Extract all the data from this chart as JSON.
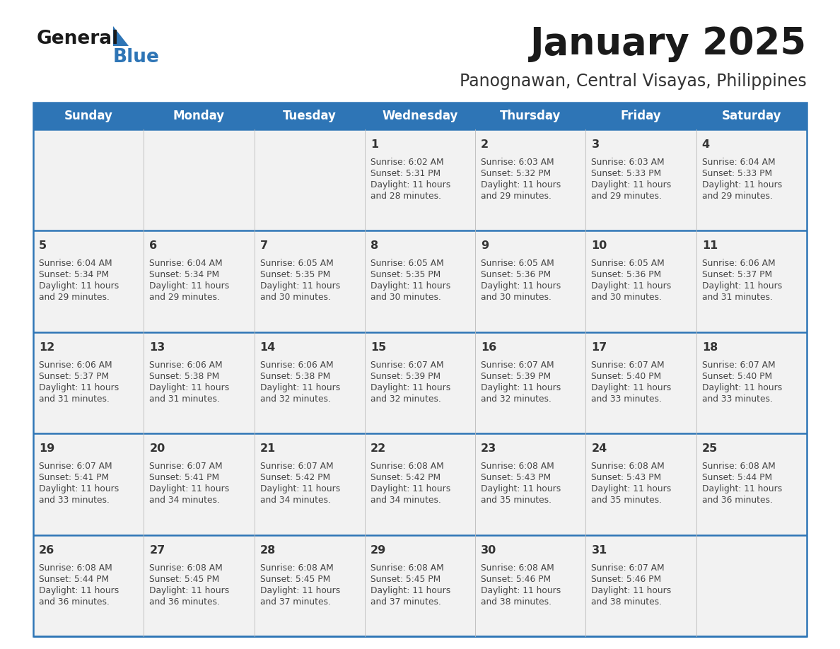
{
  "title": "January 2025",
  "subtitle": "Panognawan, Central Visayas, Philippines",
  "days_of_week": [
    "Sunday",
    "Monday",
    "Tuesday",
    "Wednesday",
    "Thursday",
    "Friday",
    "Saturday"
  ],
  "header_bg": "#2E75B6",
  "header_text": "#FFFFFF",
  "cell_bg": "#F2F2F2",
  "cell_border_color": "#2E75B6",
  "day_num_color": "#333333",
  "text_color": "#444444",
  "calendar_data": [
    [
      null,
      null,
      null,
      {
        "day": 1,
        "sunrise": "6:02 AM",
        "sunset": "5:31 PM",
        "daylight_min": "28"
      },
      {
        "day": 2,
        "sunrise": "6:03 AM",
        "sunset": "5:32 PM",
        "daylight_min": "29"
      },
      {
        "day": 3,
        "sunrise": "6:03 AM",
        "sunset": "5:33 PM",
        "daylight_min": "29"
      },
      {
        "day": 4,
        "sunrise": "6:04 AM",
        "sunset": "5:33 PM",
        "daylight_min": "29"
      }
    ],
    [
      {
        "day": 5,
        "sunrise": "6:04 AM",
        "sunset": "5:34 PM",
        "daylight_min": "29"
      },
      {
        "day": 6,
        "sunrise": "6:04 AM",
        "sunset": "5:34 PM",
        "daylight_min": "29"
      },
      {
        "day": 7,
        "sunrise": "6:05 AM",
        "sunset": "5:35 PM",
        "daylight_min": "30"
      },
      {
        "day": 8,
        "sunrise": "6:05 AM",
        "sunset": "5:35 PM",
        "daylight_min": "30"
      },
      {
        "day": 9,
        "sunrise": "6:05 AM",
        "sunset": "5:36 PM",
        "daylight_min": "30"
      },
      {
        "day": 10,
        "sunrise": "6:05 AM",
        "sunset": "5:36 PM",
        "daylight_min": "30"
      },
      {
        "day": 11,
        "sunrise": "6:06 AM",
        "sunset": "5:37 PM",
        "daylight_min": "31"
      }
    ],
    [
      {
        "day": 12,
        "sunrise": "6:06 AM",
        "sunset": "5:37 PM",
        "daylight_min": "31"
      },
      {
        "day": 13,
        "sunrise": "6:06 AM",
        "sunset": "5:38 PM",
        "daylight_min": "31"
      },
      {
        "day": 14,
        "sunrise": "6:06 AM",
        "sunset": "5:38 PM",
        "daylight_min": "32"
      },
      {
        "day": 15,
        "sunrise": "6:07 AM",
        "sunset": "5:39 PM",
        "daylight_min": "32"
      },
      {
        "day": 16,
        "sunrise": "6:07 AM",
        "sunset": "5:39 PM",
        "daylight_min": "32"
      },
      {
        "day": 17,
        "sunrise": "6:07 AM",
        "sunset": "5:40 PM",
        "daylight_min": "33"
      },
      {
        "day": 18,
        "sunrise": "6:07 AM",
        "sunset": "5:40 PM",
        "daylight_min": "33"
      }
    ],
    [
      {
        "day": 19,
        "sunrise": "6:07 AM",
        "sunset": "5:41 PM",
        "daylight_min": "33"
      },
      {
        "day": 20,
        "sunrise": "6:07 AM",
        "sunset": "5:41 PM",
        "daylight_min": "34"
      },
      {
        "day": 21,
        "sunrise": "6:07 AM",
        "sunset": "5:42 PM",
        "daylight_min": "34"
      },
      {
        "day": 22,
        "sunrise": "6:08 AM",
        "sunset": "5:42 PM",
        "daylight_min": "34"
      },
      {
        "day": 23,
        "sunrise": "6:08 AM",
        "sunset": "5:43 PM",
        "daylight_min": "35"
      },
      {
        "day": 24,
        "sunrise": "6:08 AM",
        "sunset": "5:43 PM",
        "daylight_min": "35"
      },
      {
        "day": 25,
        "sunrise": "6:08 AM",
        "sunset": "5:44 PM",
        "daylight_min": "36"
      }
    ],
    [
      {
        "day": 26,
        "sunrise": "6:08 AM",
        "sunset": "5:44 PM",
        "daylight_min": "36"
      },
      {
        "day": 27,
        "sunrise": "6:08 AM",
        "sunset": "5:45 PM",
        "daylight_min": "36"
      },
      {
        "day": 28,
        "sunrise": "6:08 AM",
        "sunset": "5:45 PM",
        "daylight_min": "37"
      },
      {
        "day": 29,
        "sunrise": "6:08 AM",
        "sunset": "5:45 PM",
        "daylight_min": "37"
      },
      {
        "day": 30,
        "sunrise": "6:08 AM",
        "sunset": "5:46 PM",
        "daylight_min": "38"
      },
      {
        "day": 31,
        "sunrise": "6:07 AM",
        "sunset": "5:46 PM",
        "daylight_min": "38"
      },
      null
    ]
  ],
  "logo_general_color": "#1a1a1a",
  "logo_blue_color": "#2E75B6",
  "title_color": "#1a1a1a",
  "subtitle_color": "#333333",
  "fig_width": 11.88,
  "fig_height": 9.18,
  "dpi": 100
}
